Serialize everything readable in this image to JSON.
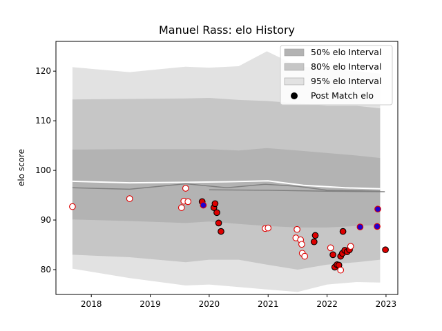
{
  "chart_data": {
    "type": "scatter",
    "title": "Manuel Rass: elo History",
    "xlabel": "",
    "ylabel": "elo score",
    "xlim": [
      2017.4,
      2023.2
    ],
    "ylim": [
      75,
      126
    ],
    "x_ticks": [
      {
        "value": 2018,
        "label": "2018"
      },
      {
        "value": 2019,
        "label": "2019"
      },
      {
        "value": 2020,
        "label": "2020"
      },
      {
        "value": 2021,
        "label": "2021"
      },
      {
        "value": 2022,
        "label": "2022"
      },
      {
        "value": 2023,
        "label": "2023"
      }
    ],
    "y_ticks": [
      {
        "value": 80,
        "label": "80"
      },
      {
        "value": 90,
        "label": "90"
      },
      {
        "value": 100,
        "label": "100"
      },
      {
        "value": 110,
        "label": "110"
      },
      {
        "value": 120,
        "label": "120"
      }
    ],
    "grid": false,
    "legend_position": "top-right",
    "legend": [
      {
        "label": "50% elo Interval",
        "kind": "band",
        "color": "#b3b3b3"
      },
      {
        "label": "80% elo Interval",
        "kind": "band",
        "color": "#c6c6c6"
      },
      {
        "label": "95% elo Interval",
        "kind": "band",
        "color": "#e2e2e2"
      },
      {
        "label": "Post Match elo",
        "kind": "marker",
        "color": "#000000"
      }
    ],
    "bands": [
      {
        "name": "95% elo Interval",
        "color": "#e2e2e2",
        "x": [
          2017.68,
          2018.65,
          2019.6,
          2020.0,
          2020.5,
          2020.98,
          2021.5,
          2022.0,
          2022.5,
          2022.9
        ],
        "upper": [
          120.8,
          119.8,
          120.9,
          120.7,
          121.0,
          124.0,
          121.0,
          120.5,
          120.0,
          119.5
        ],
        "lower": [
          80.2,
          78.3,
          76.8,
          77.0,
          76.5,
          76.0,
          75.5,
          77.0,
          77.5,
          77.4
        ]
      },
      {
        "name": "80% elo Interval",
        "color": "#c6c6c6",
        "x": [
          2017.68,
          2018.65,
          2019.6,
          2020.0,
          2020.5,
          2020.98,
          2021.5,
          2022.0,
          2022.5,
          2022.9
        ],
        "upper": [
          114.3,
          114.4,
          114.5,
          114.6,
          114.2,
          114.0,
          113.5,
          113.0,
          113.0,
          112.5
        ],
        "lower": [
          83.0,
          82.5,
          81.5,
          82.0,
          82.0,
          81.0,
          80.0,
          81.0,
          81.5,
          82.0
        ]
      },
      {
        "name": "50% elo Interval",
        "color": "#b3b3b3",
        "x": [
          2017.68,
          2018.65,
          2019.6,
          2020.0,
          2020.5,
          2020.98,
          2021.5,
          2022.0,
          2022.5,
          2022.9
        ],
        "upper": [
          104.2,
          104.3,
          104.3,
          104.3,
          104.0,
          104.5,
          104.0,
          103.5,
          103.0,
          102.5
        ],
        "lower": [
          90.1,
          89.8,
          89.4,
          89.7,
          89.2,
          88.8,
          88.5,
          88.5,
          88.8,
          89.0
        ]
      }
    ],
    "center_lines": [
      {
        "x": [
          2017.68,
          2018.65,
          2019.6,
          2020.3,
          2020.95,
          2021.5,
          2022.0,
          2022.9
        ],
        "y": [
          96.5,
          96.2,
          97.3,
          96.5,
          97.2,
          96.8,
          96.0,
          95.8
        ]
      },
      {
        "x": [
          2020.0,
          2021.0,
          2022.0,
          2022.98
        ],
        "y": [
          96.1,
          96.0,
          95.8,
          95.7
        ]
      }
    ],
    "white_lines": [
      {
        "x": [
          2017.68,
          2018.65,
          2019.6,
          2020.3,
          2021.0,
          2021.6,
          2022.3,
          2022.9
        ],
        "y": [
          97.8,
          97.5,
          97.6,
          97.7,
          97.9,
          97.0,
          96.5,
          96.3
        ]
      }
    ],
    "series": [
      {
        "name": "Post Match elo",
        "points": [
          {
            "x": 2017.68,
            "y": 92.7,
            "face": "#ffffff",
            "edge": "#dd0000"
          },
          {
            "x": 2018.65,
            "y": 94.3,
            "face": "#ffffff",
            "edge": "#dd0000"
          },
          {
            "x": 2019.53,
            "y": 92.5,
            "face": "#ffffff",
            "edge": "#dd0000"
          },
          {
            "x": 2019.57,
            "y": 93.8,
            "face": "#ffffff",
            "edge": "#dd0000"
          },
          {
            "x": 2019.6,
            "y": 96.4,
            "face": "#ffffff",
            "edge": "#dd0000"
          },
          {
            "x": 2019.64,
            "y": 93.7,
            "face": "#ffffff",
            "edge": "#dd0000"
          },
          {
            "x": 2019.88,
            "y": 93.7,
            "face": "#dd0000",
            "edge": "#000000"
          },
          {
            "x": 2019.9,
            "y": 93.0,
            "face": "#2200cc",
            "edge": "#dd0000"
          },
          {
            "x": 2020.08,
            "y": 92.5,
            "face": "#dd0000",
            "edge": "#000000"
          },
          {
            "x": 2020.1,
            "y": 93.3,
            "face": "#dd0000",
            "edge": "#000000"
          },
          {
            "x": 2020.13,
            "y": 91.5,
            "face": "#dd0000",
            "edge": "#000000"
          },
          {
            "x": 2020.16,
            "y": 89.4,
            "face": "#dd0000",
            "edge": "#000000"
          },
          {
            "x": 2020.2,
            "y": 87.7,
            "face": "#dd0000",
            "edge": "#000000"
          },
          {
            "x": 2020.95,
            "y": 88.3,
            "face": "#ffffff",
            "edge": "#dd0000"
          },
          {
            "x": 2021.0,
            "y": 88.4,
            "face": "#ffffff",
            "edge": "#dd0000"
          },
          {
            "x": 2021.47,
            "y": 86.4,
            "face": "#ffffff",
            "edge": "#dd0000"
          },
          {
            "x": 2021.49,
            "y": 88.1,
            "face": "#ffffff",
            "edge": "#dd0000"
          },
          {
            "x": 2021.55,
            "y": 86.0,
            "face": "#ffffff",
            "edge": "#dd0000"
          },
          {
            "x": 2021.57,
            "y": 85.1,
            "face": "#ffffff",
            "edge": "#dd0000"
          },
          {
            "x": 2021.58,
            "y": 83.3,
            "face": "#ffffff",
            "edge": "#dd0000"
          },
          {
            "x": 2021.62,
            "y": 82.7,
            "face": "#ffffff",
            "edge": "#dd0000"
          },
          {
            "x": 2021.78,
            "y": 85.6,
            "face": "#dd0000",
            "edge": "#000000"
          },
          {
            "x": 2021.8,
            "y": 86.9,
            "face": "#dd0000",
            "edge": "#000000"
          },
          {
            "x": 2022.06,
            "y": 84.4,
            "face": "#ffffff",
            "edge": "#dd0000"
          },
          {
            "x": 2022.1,
            "y": 83.0,
            "face": "#dd0000",
            "edge": "#000000"
          },
          {
            "x": 2022.13,
            "y": 80.5,
            "face": "#dd0000",
            "edge": "#000000"
          },
          {
            "x": 2022.17,
            "y": 81.0,
            "face": "#dd0000",
            "edge": "#000000"
          },
          {
            "x": 2022.2,
            "y": 80.9,
            "face": "#dd0000",
            "edge": "#000000"
          },
          {
            "x": 2022.23,
            "y": 79.9,
            "face": "#ffffff",
            "edge": "#dd0000"
          },
          {
            "x": 2022.23,
            "y": 82.7,
            "face": "#dd0000",
            "edge": "#000000"
          },
          {
            "x": 2022.26,
            "y": 83.3,
            "face": "#dd0000",
            "edge": "#000000"
          },
          {
            "x": 2022.27,
            "y": 87.7,
            "face": "#dd0000",
            "edge": "#000000"
          },
          {
            "x": 2022.3,
            "y": 83.9,
            "face": "#dd0000",
            "edge": "#000000"
          },
          {
            "x": 2022.34,
            "y": 83.6,
            "face": "#dd0000",
            "edge": "#000000"
          },
          {
            "x": 2022.38,
            "y": 84.0,
            "face": "#dd0000",
            "edge": "#000000"
          },
          {
            "x": 2022.4,
            "y": 84.7,
            "face": "#ffffff",
            "edge": "#dd0000"
          },
          {
            "x": 2022.56,
            "y": 88.6,
            "face": "#2200cc",
            "edge": "#dd0000"
          },
          {
            "x": 2022.85,
            "y": 88.7,
            "face": "#2200cc",
            "edge": "#dd0000"
          },
          {
            "x": 2022.86,
            "y": 92.2,
            "face": "#2200cc",
            "edge": "#dd0000"
          },
          {
            "x": 2022.99,
            "y": 84.0,
            "face": "#dd0000",
            "edge": "#000000"
          }
        ]
      }
    ]
  }
}
